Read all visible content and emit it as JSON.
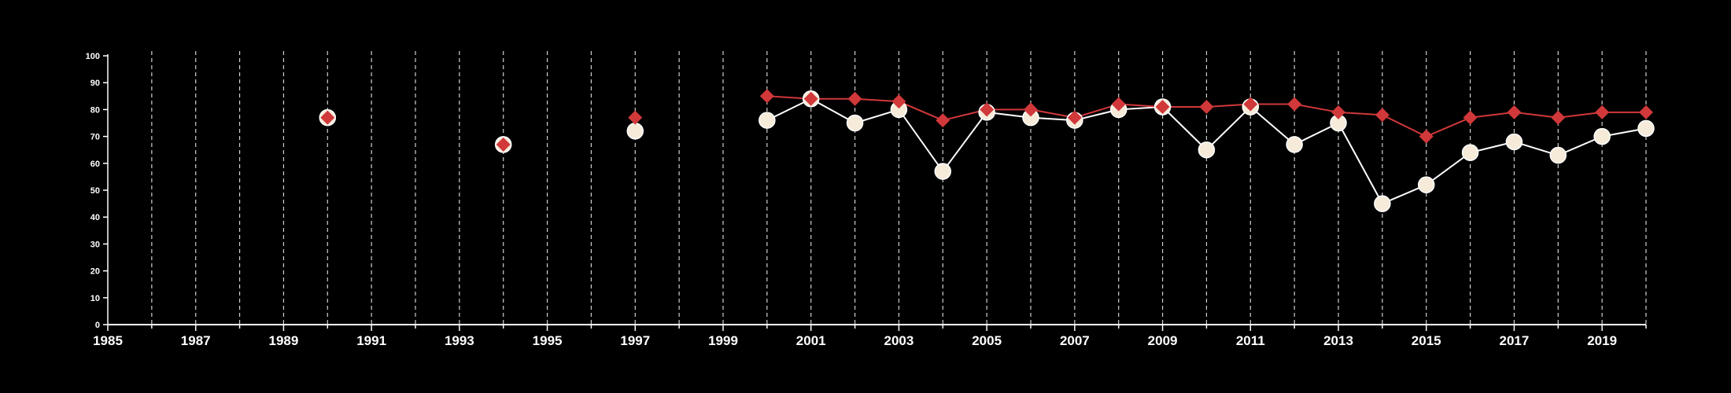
{
  "chart_data": {
    "type": "line",
    "title": "",
    "xlabel": "",
    "ylabel": "",
    "xlim": [
      1985,
      2020
    ],
    "ylim": [
      0,
      100
    ],
    "x_ticks": [
      "1985",
      "1987",
      "1989",
      "1991",
      "1993",
      "1995",
      "1997",
      "1999",
      "2001",
      "2003",
      "2005",
      "2007",
      "2009",
      "2011",
      "2013",
      "2015",
      "2017",
      "2019"
    ],
    "y_ticks": [
      "0",
      "10",
      "20",
      "30",
      "40",
      "50",
      "60",
      "70",
      "80",
      "90",
      "100"
    ],
    "grid": "vertical dashed",
    "background": "#000000",
    "series": [
      {
        "marker": "circle",
        "color": "#f6ead8",
        "line_color": "#ffffff",
        "points": [
          [
            1990,
            77
          ],
          [
            1994,
            67
          ],
          [
            1997,
            72
          ],
          [
            2000,
            76
          ],
          [
            2001,
            84
          ],
          [
            2002,
            75
          ],
          [
            2003,
            80
          ],
          [
            2004,
            57
          ],
          [
            2005,
            79
          ],
          [
            2006,
            77
          ],
          [
            2007,
            76
          ],
          [
            2008,
            80
          ],
          [
            2009,
            81
          ],
          [
            2010,
            65
          ],
          [
            2011,
            81
          ],
          [
            2012,
            67
          ],
          [
            2013,
            75
          ],
          [
            2014,
            45
          ],
          [
            2015,
            52
          ],
          [
            2016,
            64
          ],
          [
            2017,
            68
          ],
          [
            2018,
            63
          ],
          [
            2019,
            70
          ],
          [
            2020,
            73
          ]
        ]
      },
      {
        "marker": "diamond",
        "color": "#d0383a",
        "line_color": "#d0383a",
        "points": [
          [
            1990,
            77
          ],
          [
            1994,
            67
          ],
          [
            1997,
            77
          ],
          [
            2000,
            85
          ],
          [
            2001,
            84
          ],
          [
            2002,
            84
          ],
          [
            2003,
            83
          ],
          [
            2004,
            76
          ],
          [
            2005,
            80
          ],
          [
            2006,
            80
          ],
          [
            2007,
            77
          ],
          [
            2008,
            82
          ],
          [
            2009,
            81
          ],
          [
            2010,
            81
          ],
          [
            2011,
            82
          ],
          [
            2012,
            82
          ],
          [
            2013,
            79
          ],
          [
            2014,
            78
          ],
          [
            2015,
            70
          ],
          [
            2016,
            77
          ],
          [
            2017,
            79
          ],
          [
            2018,
            77
          ],
          [
            2019,
            79
          ],
          [
            2020,
            79
          ]
        ]
      }
    ]
  }
}
